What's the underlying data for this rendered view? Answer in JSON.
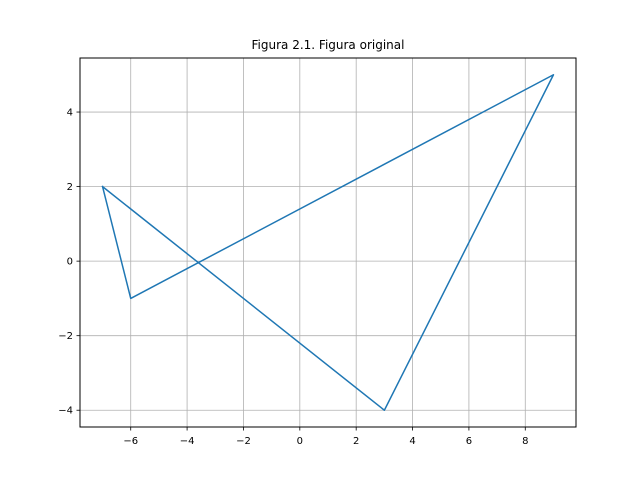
{
  "chart_data": {
    "type": "line",
    "title": "Figura 2.1. Figura original",
    "xlabel": "",
    "ylabel": "",
    "xlim": [
      -7.8,
      9.8
    ],
    "ylim": [
      -4.45,
      5.45
    ],
    "grid": true,
    "x_ticks": [
      -6,
      -4,
      -2,
      0,
      2,
      4,
      6,
      8
    ],
    "y_ticks": [
      -4,
      -2,
      0,
      2,
      4
    ],
    "series": [
      {
        "color": "#1f77b4",
        "x": [
          -7,
          -6,
          9,
          3,
          -7
        ],
        "y": [
          2,
          -1,
          5,
          -4,
          2
        ]
      }
    ]
  }
}
